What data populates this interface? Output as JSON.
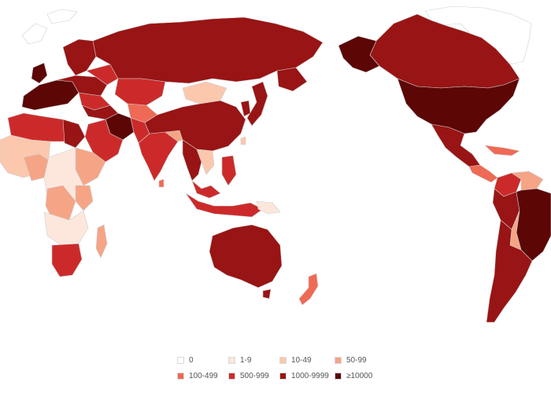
{
  "colors": {
    "ocean": "#ffffff",
    "border": "#cfcfcf",
    "ice": "#ffffff"
  },
  "legend": {
    "items": [
      {
        "label": "0",
        "color": "#ffffff"
      },
      {
        "label": "1-9",
        "color": "#fde7dc"
      },
      {
        "label": "10-49",
        "color": "#fbc8ae"
      },
      {
        "label": "50-99",
        "color": "#f5a586"
      },
      {
        "label": "100-499",
        "color": "#ef6a55"
      },
      {
        "label": "500-999",
        "color": "#cc2a2a"
      },
      {
        "label": "1000-9999",
        "color": "#991414"
      },
      {
        "label": "≥10000",
        "color": "#5c0606"
      }
    ]
  }
}
